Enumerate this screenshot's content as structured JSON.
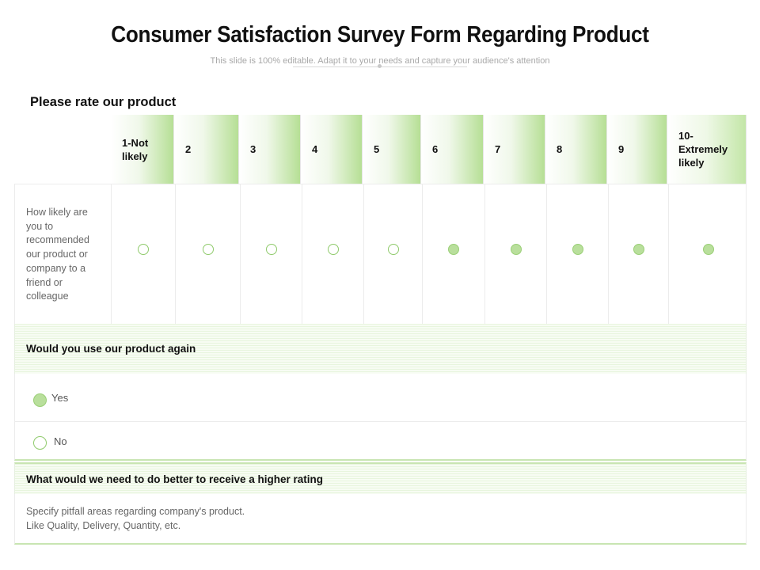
{
  "header": {
    "title": "Consumer Satisfaction Survey Form Regarding Product",
    "subtitle": "This slide is 100% editable. Adapt it to your needs and capture your audience's attention"
  },
  "rating_section": {
    "label": "Please rate our product",
    "columns": [
      "1-Not likely",
      "2",
      "3",
      "4",
      "5",
      "6",
      "7",
      "8",
      "9",
      "10- Extremely likely"
    ],
    "question": "How likely are you to recommended our product or company to a friend or colleague",
    "selected": [
      false,
      false,
      false,
      false,
      false,
      true,
      true,
      true,
      true,
      true
    ]
  },
  "reuse_section": {
    "question": "Would you use our product again",
    "options": [
      {
        "label": "Yes",
        "selected": true
      },
      {
        "label": "No",
        "selected": false
      }
    ]
  },
  "improve_section": {
    "question": "What would we need to do better to receive a higher rating",
    "answer_line1": "Specify pitfall areas regarding company's product.",
    "answer_line2": "Like Quality, Delivery, Quantity, etc."
  },
  "colors": {
    "accent_green": "#b9df9c",
    "header_gradient": "#b6df95"
  }
}
